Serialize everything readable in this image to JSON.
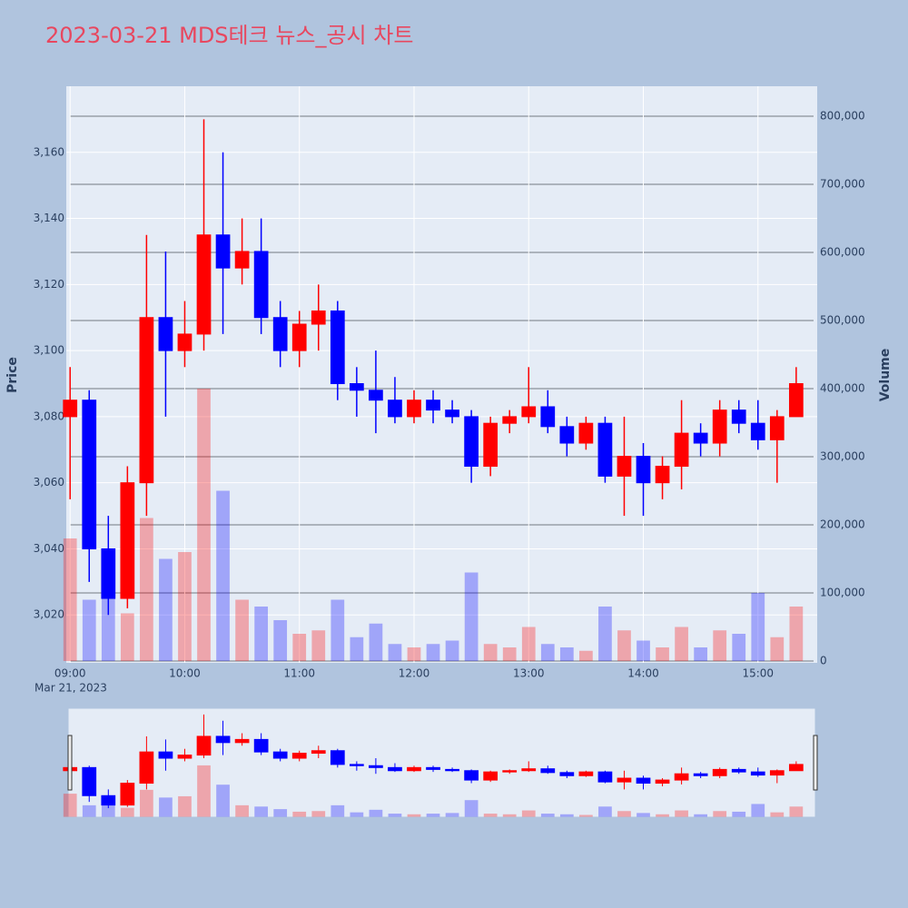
{
  "chart_data": {
    "type": "candlestick",
    "title": "2023-03-21 MDS테크 뉴스_공시 차트",
    "y_title": "Price",
    "y2_title": "Volume",
    "x_date_label": "Mar 21, 2023",
    "up_color": "#ff0000",
    "down_color": "#0000ff",
    "x": [
      "09:00",
      "09:10",
      "09:20",
      "09:30",
      "09:40",
      "09:50",
      "10:00",
      "10:10",
      "10:20",
      "10:30",
      "10:40",
      "10:50",
      "11:00",
      "11:10",
      "11:20",
      "11:30",
      "11:40",
      "11:50",
      "12:00",
      "12:10",
      "12:20",
      "12:30",
      "12:40",
      "12:50",
      "13:00",
      "13:10",
      "13:20",
      "13:30",
      "13:40",
      "13:50",
      "14:00",
      "14:10",
      "14:20",
      "14:30",
      "14:40",
      "14:50",
      "15:00",
      "15:10",
      "15:20"
    ],
    "open": [
      3080,
      3085,
      3040,
      3025,
      3060,
      3110,
      3100,
      3105,
      3135,
      3125,
      3130,
      3110,
      3100,
      3108,
      3112,
      3090,
      3088,
      3085,
      3080,
      3085,
      3082,
      3080,
      3065,
      3078,
      3080,
      3083,
      3077,
      3072,
      3078,
      3062,
      3068,
      3060,
      3065,
      3075,
      3072,
      3082,
      3078,
      3073,
      3080
    ],
    "high": [
      3095,
      3088,
      3050,
      3065,
      3135,
      3130,
      3115,
      3170,
      3160,
      3140,
      3140,
      3115,
      3112,
      3120,
      3115,
      3095,
      3100,
      3092,
      3088,
      3088,
      3085,
      3082,
      3080,
      3082,
      3095,
      3088,
      3080,
      3080,
      3080,
      3080,
      3072,
      3068,
      3085,
      3078,
      3085,
      3085,
      3085,
      3082,
      3095
    ],
    "low": [
      3055,
      3030,
      3020,
      3022,
      3050,
      3080,
      3095,
      3100,
      3105,
      3120,
      3105,
      3095,
      3095,
      3100,
      3085,
      3080,
      3075,
      3078,
      3078,
      3078,
      3078,
      3060,
      3062,
      3075,
      3078,
      3075,
      3068,
      3070,
      3060,
      3050,
      3050,
      3055,
      3058,
      3068,
      3068,
      3075,
      3070,
      3060,
      3080
    ],
    "close": [
      3085,
      3040,
      3025,
      3060,
      3110,
      3100,
      3105,
      3135,
      3125,
      3130,
      3110,
      3100,
      3108,
      3112,
      3090,
      3088,
      3085,
      3080,
      3085,
      3082,
      3080,
      3065,
      3078,
      3080,
      3083,
      3077,
      3072,
      3078,
      3062,
      3068,
      3060,
      3065,
      3075,
      3072,
      3082,
      3078,
      3073,
      3080,
      3090
    ],
    "volume": [
      180000,
      90000,
      110000,
      70000,
      210000,
      150000,
      160000,
      400000,
      250000,
      90000,
      80000,
      60000,
      40000,
      45000,
      90000,
      35000,
      55000,
      25000,
      20000,
      25000,
      30000,
      130000,
      25000,
      20000,
      50000,
      25000,
      20000,
      15000,
      80000,
      45000,
      30000,
      20000,
      50000,
      20000,
      45000,
      40000,
      100000,
      35000,
      80000
    ],
    "xlim": [
      "08:58",
      "15:31"
    ],
    "xticks": [
      "09:00",
      "10:00",
      "11:00",
      "12:00",
      "13:00",
      "14:00",
      "15:00"
    ],
    "ylim": [
      3005.5,
      3180
    ],
    "yticks": [
      {
        "value": 3020,
        "label": "3,020"
      },
      {
        "value": 3040,
        "label": "3,040"
      },
      {
        "value": 3060,
        "label": "3,060"
      },
      {
        "value": 3080,
        "label": "3,080"
      },
      {
        "value": 3100,
        "label": "3,100"
      },
      {
        "value": 3120,
        "label": "3,120"
      },
      {
        "value": 3140,
        "label": "3,140"
      },
      {
        "value": 3160,
        "label": "3,160"
      }
    ],
    "y2lim": [
      -2667,
      844000
    ],
    "y2ticks": [
      0,
      {
        "value": 100000,
        "label": "100,000"
      },
      {
        "value": 200000,
        "label": "200,000"
      },
      {
        "value": 300000,
        "label": "300,000"
      },
      {
        "value": 400000,
        "label": "400,000"
      },
      {
        "value": 500000,
        "label": "500,000"
      },
      {
        "value": 600000,
        "label": "600,000"
      },
      {
        "value": 700000,
        "label": "700,000"
      },
      {
        "value": 800000,
        "label": "800,000"
      }
    ],
    "grid": true,
    "range_slider": true
  }
}
